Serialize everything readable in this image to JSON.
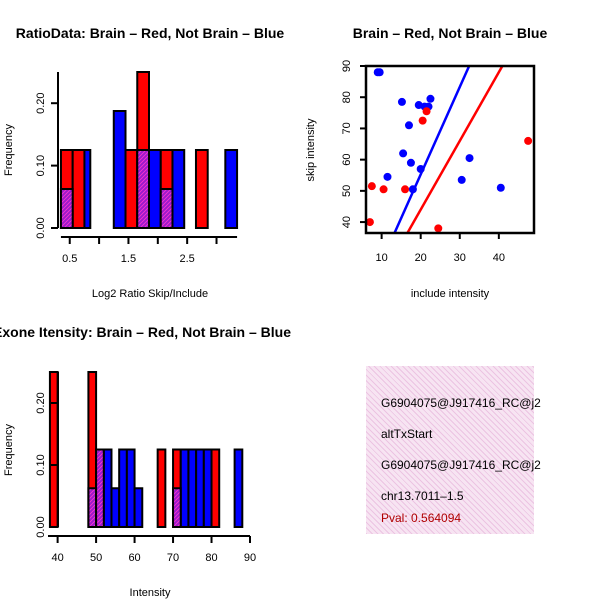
{
  "colors": {
    "red": "#ff0000",
    "blue": "#0000ff",
    "purple": "#9a1acc",
    "axis": "#000000",
    "info_bg": "#f7e4f2"
  },
  "chart_data": [
    {
      "id": "ratio_hist",
      "type": "bar",
      "title": "RatioData: Brain – Red, Not Brain – Blue",
      "xlabel": "Log2 Ratio Skip/Include",
      "ylabel": "Frequency",
      "xlim": [
        0.3,
        3.4
      ],
      "ylim": [
        0,
        0.25
      ],
      "xticks": [
        "0.5",
        "1.5",
        "2.5"
      ],
      "yticks": [
        "0.00",
        "0.10",
        "0.20"
      ],
      "bars": [
        {
          "series": "Brain",
          "color": "red",
          "x0": 0.35,
          "x1": 0.55,
          "value": 0.125
        },
        {
          "series": "Not Brain",
          "color": "blue",
          "x0": 0.65,
          "x1": 0.85,
          "value": 0.125
        },
        {
          "series": "Brain",
          "color": "red",
          "x0": 0.55,
          "x1": 0.75,
          "value": 0.125
        },
        {
          "series": "Not Brain",
          "color": "blue",
          "x0": 1.25,
          "x1": 1.45,
          "value": 0.1875
        },
        {
          "series": "Brain",
          "color": "red",
          "x0": 1.45,
          "x1": 1.65,
          "value": 0.125
        },
        {
          "series": "Brain",
          "color": "red",
          "x0": 1.65,
          "x1": 1.85,
          "value": 0.25
        },
        {
          "series": "Not Brain",
          "color": "blue",
          "x0": 1.85,
          "x1": 2.05,
          "value": 0.125
        },
        {
          "series": "Brain",
          "color": "red",
          "x0": 2.05,
          "x1": 2.25,
          "value": 0.125
        },
        {
          "series": "Not Brain",
          "color": "blue",
          "x0": 2.25,
          "x1": 2.45,
          "value": 0.125
        },
        {
          "series": "Brain",
          "color": "red",
          "x0": 2.65,
          "x1": 2.85,
          "value": 0.125
        },
        {
          "series": "Not Brain",
          "color": "blue",
          "x0": 3.15,
          "x1": 3.35,
          "value": 0.125
        }
      ],
      "overlaps": [
        {
          "x0": 0.35,
          "x1": 0.55,
          "value": 0.0625
        },
        {
          "x0": 1.65,
          "x1": 1.85,
          "value": 0.125
        },
        {
          "x0": 2.05,
          "x1": 2.25,
          "value": 0.0625
        }
      ]
    },
    {
      "id": "scatter",
      "type": "scatter",
      "title": "Brain – Red, Not Brain – Blue",
      "xlabel": "include intensity",
      "ylabel": "skip intensity",
      "xlim": [
        6,
        49
      ],
      "ylim": [
        36.5,
        90
      ],
      "xticks": [
        10,
        20,
        30,
        40
      ],
      "yticks": [
        40,
        50,
        60,
        70,
        80,
        90
      ],
      "points": [
        {
          "series": "Not Brain",
          "color": "blue",
          "x": 9.0,
          "y": 88.0
        },
        {
          "series": "Not Brain",
          "color": "blue",
          "x": 9.5,
          "y": 88.0
        },
        {
          "series": "Not Brain",
          "color": "blue",
          "x": 11.5,
          "y": 54.5
        },
        {
          "series": "Not Brain",
          "color": "blue",
          "x": 15.2,
          "y": 78.5
        },
        {
          "series": "Not Brain",
          "color": "blue",
          "x": 15.5,
          "y": 62.0
        },
        {
          "series": "Not Brain",
          "color": "blue",
          "x": 17.0,
          "y": 71.0
        },
        {
          "series": "Not Brain",
          "color": "blue",
          "x": 17.5,
          "y": 59.0
        },
        {
          "series": "Not Brain",
          "color": "blue",
          "x": 18.0,
          "y": 50.5
        },
        {
          "series": "Not Brain",
          "color": "blue",
          "x": 19.5,
          "y": 77.5
        },
        {
          "series": "Not Brain",
          "color": "blue",
          "x": 20.0,
          "y": 57.0
        },
        {
          "series": "Not Brain",
          "color": "blue",
          "x": 21.0,
          "y": 77.0
        },
        {
          "series": "Not Brain",
          "color": "blue",
          "x": 22.0,
          "y": 77.0
        },
        {
          "series": "Not Brain",
          "color": "blue",
          "x": 22.5,
          "y": 79.5
        },
        {
          "series": "Not Brain",
          "color": "blue",
          "x": 30.5,
          "y": 53.5
        },
        {
          "series": "Not Brain",
          "color": "blue",
          "x": 32.5,
          "y": 60.5
        },
        {
          "series": "Not Brain",
          "color": "blue",
          "x": 40.5,
          "y": 51.0
        },
        {
          "series": "Brain",
          "color": "red",
          "x": 7.0,
          "y": 40.0
        },
        {
          "series": "Brain",
          "color": "red",
          "x": 7.5,
          "y": 51.5
        },
        {
          "series": "Brain",
          "color": "red",
          "x": 10.5,
          "y": 50.5
        },
        {
          "series": "Brain",
          "color": "red",
          "x": 16.0,
          "y": 50.5
        },
        {
          "series": "Brain",
          "color": "red",
          "x": 20.5,
          "y": 72.5
        },
        {
          "series": "Brain",
          "color": "red",
          "x": 21.5,
          "y": 75.5
        },
        {
          "series": "Brain",
          "color": "red",
          "x": 24.5,
          "y": 38.0
        },
        {
          "series": "Brain",
          "color": "red",
          "x": 47.5,
          "y": 66.0
        }
      ],
      "lines": [
        {
          "series": "Not Brain",
          "color": "blue",
          "x": [
            13.3,
            32.4
          ],
          "y": [
            36.5,
            90
          ]
        },
        {
          "series": "Brain",
          "color": "red",
          "x": [
            16.6,
            40.9
          ],
          "y": [
            36.5,
            90
          ]
        }
      ]
    },
    {
      "id": "intensity_hist",
      "type": "bar",
      "title": "Exone Itensity: Brain – Red, Not Brain – Blue",
      "xlabel": "Intensity",
      "ylabel": "Frequency",
      "xlim": [
        37.5,
        90
      ],
      "ylim": [
        0,
        0.25
      ],
      "xticks": [
        "40",
        "50",
        "60",
        "70",
        "80",
        "90"
      ],
      "yticks": [
        "0.00",
        "0.10",
        "0.20"
      ],
      "bars": [
        {
          "series": "Brain",
          "color": "red",
          "x0": 38,
          "x1": 40,
          "value": 0.25
        },
        {
          "series": "Brain",
          "color": "red",
          "x0": 48,
          "x1": 50,
          "value": 0.25
        },
        {
          "series": "Brain",
          "color": "red",
          "x0": 50,
          "x1": 52,
          "value": 0.125
        },
        {
          "series": "Not Brain",
          "color": "blue",
          "x0": 52,
          "x1": 54,
          "value": 0.125
        },
        {
          "series": "Not Brain",
          "color": "blue",
          "x0": 54,
          "x1": 56,
          "value": 0.0625
        },
        {
          "series": "Not Brain",
          "color": "blue",
          "x0": 56,
          "x1": 58,
          "value": 0.125
        },
        {
          "series": "Not Brain",
          "color": "blue",
          "x0": 58,
          "x1": 60,
          "value": 0.125
        },
        {
          "series": "Not Brain",
          "color": "blue",
          "x0": 60,
          "x1": 62,
          "value": 0.0625
        },
        {
          "series": "Brain",
          "color": "red",
          "x0": 66,
          "x1": 68,
          "value": 0.125
        },
        {
          "series": "Brain",
          "color": "red",
          "x0": 70,
          "x1": 72,
          "value": 0.125
        },
        {
          "series": "Not Brain",
          "color": "blue",
          "x0": 72,
          "x1": 74,
          "value": 0.125
        },
        {
          "series": "Not Brain",
          "color": "blue",
          "x0": 74,
          "x1": 76,
          "value": 0.125
        },
        {
          "series": "Not Brain",
          "color": "blue",
          "x0": 76,
          "x1": 78,
          "value": 0.125
        },
        {
          "series": "Not Brain",
          "color": "blue",
          "x0": 78,
          "x1": 80,
          "value": 0.125
        },
        {
          "series": "Brain",
          "color": "red",
          "x0": 80,
          "x1": 82,
          "value": 0.125
        },
        {
          "series": "Not Brain",
          "color": "blue",
          "x0": 86,
          "x1": 88,
          "value": 0.125
        }
      ],
      "overlaps": [
        {
          "x0": 48,
          "x1": 50,
          "value": 0.0625
        },
        {
          "x0": 50,
          "x1": 52,
          "value": 0.125
        },
        {
          "x0": 70,
          "x1": 72,
          "value": 0.0625
        }
      ]
    }
  ],
  "info": {
    "event_id": "G6904075@J917416_RC@j2",
    "event_type": "altTxStart",
    "event_id_repeat": "G6904075@J917416_RC@j2",
    "location": "chr13.7011–1.5",
    "pval": "Pval: 0.564094"
  }
}
